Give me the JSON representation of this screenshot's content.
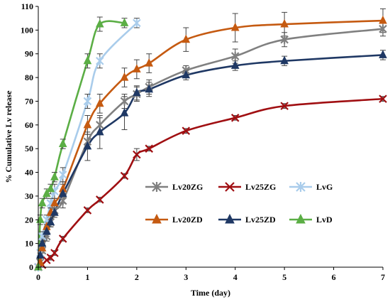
{
  "chart_data": {
    "type": "line",
    "title": "",
    "xlabel": "Time (day)",
    "ylabel": "% Cumulative Lv release",
    "xlim": [
      0,
      7
    ],
    "ylim": [
      0,
      110
    ],
    "xticks": [
      0,
      1,
      2,
      3,
      4,
      5,
      6,
      7
    ],
    "yticks": [
      0,
      10,
      20,
      30,
      40,
      50,
      60,
      70,
      80,
      90,
      100,
      110
    ],
    "grid": false,
    "legend_position": "center-right",
    "series": [
      {
        "name": "Lv20ZG",
        "color": "#808080",
        "marker": "x-star",
        "x": [
          0,
          0.04,
          0.08,
          0.17,
          0.25,
          0.33,
          0.5,
          1,
          1.25,
          1.75,
          2,
          2.25,
          3,
          4,
          5,
          7
        ],
        "y": [
          0,
          2,
          7,
          13,
          19,
          24,
          28,
          53,
          60,
          70,
          73,
          76,
          83,
          89,
          96,
          100.5
        ],
        "err": [
          0,
          1,
          1,
          2,
          2,
          2,
          3,
          3,
          3,
          3,
          3,
          3,
          2,
          3,
          3,
          3
        ]
      },
      {
        "name": "Lv25ZG",
        "color": "#A00F12",
        "marker": "x",
        "x": [
          0,
          0.08,
          0.17,
          0.25,
          0.33,
          0.5,
          1,
          1.25,
          1.75,
          2,
          2.25,
          3,
          4,
          5,
          7
        ],
        "y": [
          0,
          1,
          3,
          4,
          6,
          12,
          24,
          28.5,
          38.5,
          47.5,
          50,
          57.5,
          63,
          68,
          71
        ],
        "err": [
          0,
          0,
          0,
          1,
          1,
          1,
          1,
          1,
          1,
          2.5,
          1,
          1,
          1,
          1,
          1
        ]
      },
      {
        "name": "LvG",
        "color": "#A9CCEB",
        "marker": "x-star",
        "x": [
          0,
          0.04,
          0.08,
          0.17,
          0.25,
          0.33,
          0.5,
          1,
          1.25,
          2
        ],
        "y": [
          0,
          6,
          13,
          20,
          27,
          32,
          39,
          70,
          87,
          103
        ],
        "err": [
          0,
          1,
          2,
          2,
          2,
          3,
          3,
          3,
          3,
          2
        ]
      },
      {
        "name": "Lv20ZD",
        "color": "#C55A11",
        "marker": "triangle",
        "x": [
          0,
          0.04,
          0.08,
          0.17,
          0.25,
          0.33,
          0.5,
          1,
          1.25,
          1.75,
          2,
          2.25,
          3,
          4,
          5,
          7
        ],
        "y": [
          0,
          2,
          8,
          17,
          23,
          27,
          33,
          60,
          69,
          80,
          83.5,
          86,
          96,
          101,
          102.5,
          104
        ],
        "err": [
          0,
          1,
          1,
          2,
          2,
          2,
          3,
          4,
          4,
          4,
          4,
          4,
          5,
          6,
          5,
          5
        ]
      },
      {
        "name": "Lv25ZD",
        "color": "#1F3864",
        "marker": "triangle",
        "x": [
          0,
          0.04,
          0.08,
          0.17,
          0.25,
          0.33,
          0.5,
          1,
          1.25,
          1.75,
          2,
          2.25,
          3,
          4,
          5,
          7
        ],
        "y": [
          0,
          5,
          10,
          15,
          19,
          23,
          31,
          51,
          57,
          65,
          73.5,
          75,
          81,
          85,
          87,
          89.5
        ],
        "err": [
          0,
          1,
          2,
          2,
          2,
          2,
          4,
          6,
          7,
          7,
          3,
          3,
          2,
          2,
          2,
          2
        ]
      },
      {
        "name": "LvD",
        "color": "#5BAE45",
        "marker": "triangle",
        "x": [
          0,
          0.04,
          0.08,
          0.17,
          0.25,
          0.33,
          0.5,
          1,
          1.25,
          1.75
        ],
        "y": [
          0,
          20,
          27,
          31,
          33,
          38,
          52,
          87,
          102.5,
          103
        ],
        "err": [
          0,
          2,
          2,
          2,
          2,
          2,
          2,
          3,
          3,
          2
        ]
      }
    ],
    "legend": [
      "Lv20ZG",
      "Lv25ZG",
      "LvG",
      "Lv20ZD",
      "Lv25ZD",
      "LvD"
    ]
  }
}
